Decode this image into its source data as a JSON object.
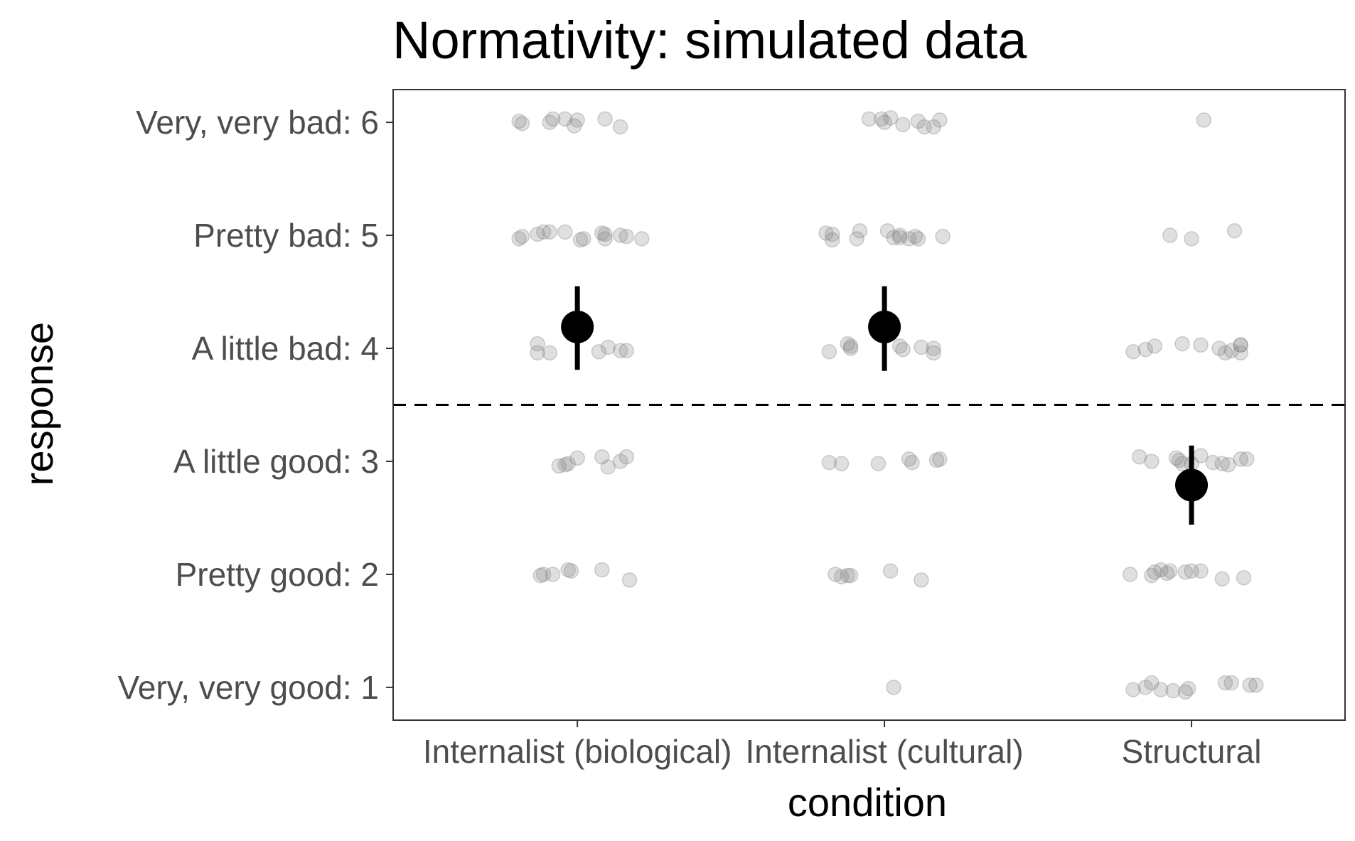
{
  "chart_data": {
    "type": "scatter",
    "title": "Normativity: simulated data",
    "xlabel": "condition",
    "ylabel": "response",
    "categories": [
      "Internalist (biological)",
      "Internalist (cultural)",
      "Structural"
    ],
    "y_ticks": [
      {
        "value": 6,
        "label": "Very, very bad: 6"
      },
      {
        "value": 5,
        "label": "Pretty bad: 5"
      },
      {
        "value": 4,
        "label": "A little bad: 4"
      },
      {
        "value": 3,
        "label": "A little good: 3"
      },
      {
        "value": 2,
        "label": "Pretty good: 2"
      },
      {
        "value": 1,
        "label": "Very, very good: 1"
      }
    ],
    "ylim": [
      0.71,
      6.29
    ],
    "grid": false,
    "reference_line": {
      "y": 3.5,
      "style": "dashed"
    },
    "point_color": "#808080",
    "summary_color": "#000000",
    "raw_points": [
      {
        "category": "Internalist (biological)",
        "points": [
          [
            -0.19,
            6.01
          ],
          [
            -0.18,
            5.99
          ],
          [
            -0.09,
            6.0
          ],
          [
            -0.08,
            6.03
          ],
          [
            -0.04,
            6.03
          ],
          [
            -0.01,
            5.97
          ],
          [
            0.0,
            6.02
          ],
          [
            0.09,
            6.03
          ],
          [
            0.14,
            5.96
          ],
          [
            -0.19,
            4.97
          ],
          [
            -0.18,
            4.99
          ],
          [
            -0.13,
            5.01
          ],
          [
            -0.11,
            5.03
          ],
          [
            -0.09,
            5.03
          ],
          [
            -0.04,
            5.03
          ],
          [
            0.01,
            4.96
          ],
          [
            0.02,
            4.97
          ],
          [
            0.08,
            5.02
          ],
          [
            0.09,
            4.97
          ],
          [
            0.09,
            5.01
          ],
          [
            0.14,
            5.0
          ],
          [
            0.16,
            4.99
          ],
          [
            0.21,
            4.97
          ],
          [
            -0.13,
            4.04
          ],
          [
            -0.13,
            3.96
          ],
          [
            -0.09,
            3.96
          ],
          [
            0.07,
            3.97
          ],
          [
            0.1,
            4.01
          ],
          [
            0.14,
            3.98
          ],
          [
            0.16,
            3.98
          ],
          [
            -0.06,
            2.96
          ],
          [
            -0.04,
            2.97
          ],
          [
            -0.03,
            2.98
          ],
          [
            0.0,
            3.03
          ],
          [
            0.08,
            3.04
          ],
          [
            0.1,
            2.95
          ],
          [
            0.14,
            3.0
          ],
          [
            0.16,
            3.04
          ],
          [
            -0.12,
            1.99
          ],
          [
            -0.11,
            2.0
          ],
          [
            -0.08,
            2.0
          ],
          [
            -0.03,
            2.04
          ],
          [
            -0.02,
            2.03
          ],
          [
            0.08,
            2.04
          ],
          [
            0.17,
            1.95
          ]
        ]
      },
      {
        "category": "Internalist (cultural)",
        "points": [
          [
            -0.05,
            6.03
          ],
          [
            -0.01,
            6.03
          ],
          [
            0.0,
            6.0
          ],
          [
            0.02,
            6.04
          ],
          [
            0.06,
            5.98
          ],
          [
            0.11,
            6.01
          ],
          [
            0.13,
            5.96
          ],
          [
            0.16,
            5.96
          ],
          [
            0.18,
            6.02
          ],
          [
            -0.19,
            5.02
          ],
          [
            -0.17,
            5.01
          ],
          [
            -0.17,
            4.96
          ],
          [
            -0.09,
            4.97
          ],
          [
            -0.08,
            5.04
          ],
          [
            0.01,
            5.04
          ],
          [
            0.03,
            4.98
          ],
          [
            0.05,
            5.0
          ],
          [
            0.05,
            4.98
          ],
          [
            0.08,
            4.97
          ],
          [
            0.11,
            4.97
          ],
          [
            0.1,
            4.99
          ],
          [
            0.19,
            4.99
          ],
          [
            -0.18,
            3.97
          ],
          [
            -0.12,
            4.04
          ],
          [
            -0.11,
            4.02
          ],
          [
            -0.11,
            4.0
          ],
          [
            0.06,
            3.99
          ],
          [
            0.05,
            4.02
          ],
          [
            0.12,
            4.01
          ],
          [
            0.16,
            3.96
          ],
          [
            0.16,
            4.0
          ],
          [
            -0.18,
            2.99
          ],
          [
            -0.14,
            2.98
          ],
          [
            -0.02,
            2.98
          ],
          [
            0.08,
            3.02
          ],
          [
            0.09,
            2.99
          ],
          [
            0.17,
            3.01
          ],
          [
            0.18,
            3.02
          ],
          [
            -0.16,
            2.0
          ],
          [
            -0.14,
            1.98
          ],
          [
            -0.12,
            1.99
          ],
          [
            -0.11,
            1.99
          ],
          [
            0.02,
            2.03
          ],
          [
            0.12,
            1.95
          ],
          [
            0.03,
            1.0
          ]
        ]
      },
      {
        "category": "Structural",
        "points": [
          [
            0.04,
            6.02
          ],
          [
            -0.07,
            5.0
          ],
          [
            0.0,
            4.97
          ],
          [
            0.14,
            5.04
          ],
          [
            -0.19,
            3.97
          ],
          [
            -0.15,
            3.99
          ],
          [
            -0.12,
            4.02
          ],
          [
            -0.03,
            4.04
          ],
          [
            0.03,
            4.03
          ],
          [
            0.09,
            4.0
          ],
          [
            0.11,
            3.96
          ],
          [
            0.13,
            3.98
          ],
          [
            0.16,
            4.03
          ],
          [
            0.16,
            4.03
          ],
          [
            0.16,
            3.96
          ],
          [
            -0.17,
            3.04
          ],
          [
            -0.13,
            3.0
          ],
          [
            -0.05,
            3.03
          ],
          [
            -0.04,
            3.01
          ],
          [
            -0.03,
            2.98
          ],
          [
            0.0,
            2.98
          ],
          [
            0.03,
            3.05
          ],
          [
            0.07,
            2.99
          ],
          [
            0.1,
            2.98
          ],
          [
            0.12,
            2.97
          ],
          [
            0.16,
            3.02
          ],
          [
            0.18,
            3.02
          ],
          [
            -0.2,
            2.0
          ],
          [
            -0.13,
            1.99
          ],
          [
            -0.12,
            2.02
          ],
          [
            -0.1,
            2.04
          ],
          [
            -0.08,
            2.01
          ],
          [
            -0.07,
            2.03
          ],
          [
            -0.02,
            2.02
          ],
          [
            0.0,
            2.03
          ],
          [
            0.03,
            2.03
          ],
          [
            0.1,
            1.96
          ],
          [
            0.17,
            1.97
          ],
          [
            -0.19,
            0.98
          ],
          [
            -0.15,
            1.0
          ],
          [
            -0.13,
            1.04
          ],
          [
            -0.1,
            0.98
          ],
          [
            -0.06,
            0.97
          ],
          [
            -0.02,
            0.96
          ],
          [
            -0.01,
            0.99
          ],
          [
            0.11,
            1.04
          ],
          [
            0.13,
            1.04
          ],
          [
            0.19,
            1.02
          ],
          [
            0.21,
            1.02
          ]
        ]
      }
    ],
    "summary": [
      {
        "category": "Internalist (biological)",
        "mean": 4.19,
        "lower": 3.81,
        "upper": 4.55
      },
      {
        "category": "Internalist (cultural)",
        "mean": 4.19,
        "lower": 3.8,
        "upper": 4.55
      },
      {
        "category": "Structural",
        "mean": 2.79,
        "lower": 2.44,
        "upper": 3.14
      }
    ]
  }
}
